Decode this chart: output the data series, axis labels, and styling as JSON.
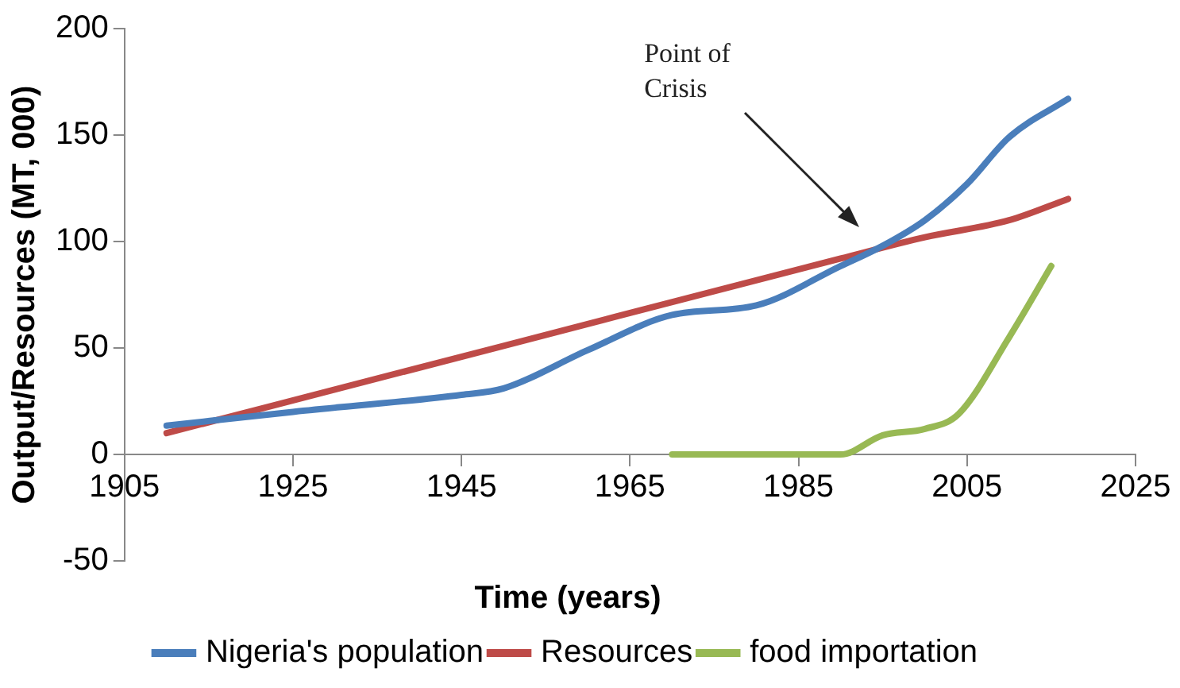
{
  "chart_data": {
    "type": "line",
    "xlabel": "Time (years)",
    "ylabel": "Output/Resources (MT, 000)",
    "xlim": [
      1905,
      2025
    ],
    "xticks": [
      1905,
      1925,
      1945,
      1965,
      1985,
      2005,
      2025
    ],
    "ylim": [
      -50,
      200
    ],
    "yticks": [
      -50,
      0,
      50,
      100,
      150,
      200
    ],
    "grid": false,
    "legend": "bottom",
    "marker": "none",
    "line_style": "solid",
    "series": [
      {
        "name": "Nigeria's population",
        "color": "#4a7ebb",
        "x": [
          1910,
          1925,
          1945,
          1950,
          1960,
          1970,
          1980,
          1990,
          1995,
          2000,
          2005,
          2010,
          2017
        ],
        "values": [
          13.5,
          20,
          28,
          31,
          49,
          65.5,
          70,
          88.5,
          98,
          110,
          127,
          149,
          167
        ]
      },
      {
        "name": "Resources",
        "color": "#be4b48",
        "x": [
          1910,
          1950,
          1990,
          2000,
          2010,
          2017
        ],
        "values": [
          10,
          51,
          92,
          102,
          110,
          120
        ]
      },
      {
        "name": "food importation",
        "color": "#98b954",
        "x": [
          1970,
          1985,
          1990,
          1995,
          2000,
          2004,
          2010,
          2015
        ],
        "values": [
          0,
          0,
          0,
          9,
          12,
          19,
          55,
          88.5
        ]
      }
    ],
    "annotations": [
      "Point of Crisis"
    ]
  }
}
